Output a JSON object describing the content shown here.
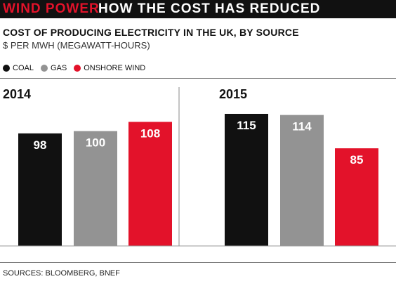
{
  "header": {
    "kicker": "WIND POWER",
    "headline": "HOW THE COST HAS REDUCED"
  },
  "colors": {
    "coal": "#111111",
    "gas": "#939393",
    "wind": "#e3122a",
    "topbar": "#111111"
  },
  "sources": "SOURCES: BLOOMBERG, BNEF",
  "chart_data": {
    "type": "bar",
    "title": "COST OF PRODUCING ELECTRICITY IN THE UK, BY SOURCE",
    "subtitle": "$ PER MWH (MEGAWATT-HOURS)",
    "xlabel": "",
    "ylabel": "",
    "ylim": [
      0,
      130
    ],
    "grid": false,
    "legend_position": "top-left",
    "series": [
      {
        "name": "COAL",
        "color": "#111111"
      },
      {
        "name": "GAS",
        "color": "#939393"
      },
      {
        "name": "ONSHORE WIND",
        "color": "#e3122a"
      }
    ],
    "panels": [
      {
        "label": "2014",
        "values": [
          98,
          100,
          108
        ]
      },
      {
        "label": "2015",
        "values": [
          115,
          114,
          85
        ]
      }
    ]
  }
}
